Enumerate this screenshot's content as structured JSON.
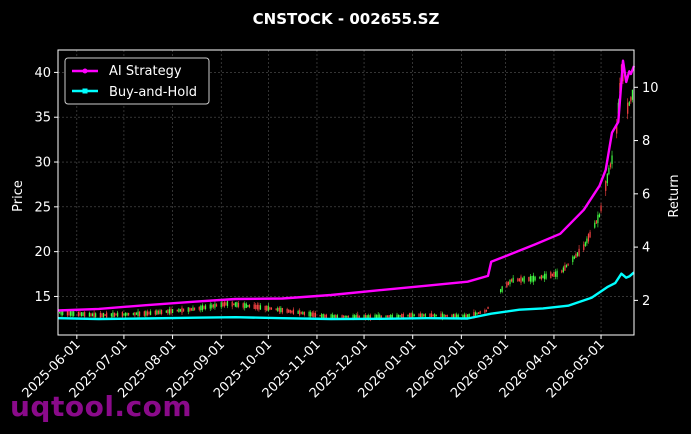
{
  "chart_data": {
    "type": "line",
    "title": "CNSTOCK - 002655.SZ",
    "ylabel_left": "Price",
    "ylabel_right": "Return",
    "x_type": "date",
    "x_range": [
      "2025-05-20",
      "2026-05-22"
    ],
    "x_ticks": [
      "2025-06-01",
      "2025-07-01",
      "2025-08-01",
      "2025-09-01",
      "2025-10-01",
      "2025-11-01",
      "2025-12-01",
      "2026-01-01",
      "2026-02-01",
      "2026-03-01",
      "2026-04-01",
      "2026-05-01"
    ],
    "y_left_ticks": [
      15,
      20,
      25,
      30,
      35,
      40
    ],
    "y_left_range": [
      10.7,
      42.5
    ],
    "y_right_ticks": [
      2,
      4,
      6,
      8,
      10
    ],
    "y_right_range": [
      0.7,
      11.4
    ],
    "grid": true,
    "legend_position": "top-left",
    "series": [
      {
        "name": "AI Strategy",
        "axis": "right",
        "color": "#ff00ff",
        "points": [
          [
            "2025-05-20",
            1.62
          ],
          [
            "2025-06-15",
            1.68
          ],
          [
            "2025-07-15",
            1.82
          ],
          [
            "2025-08-15",
            1.95
          ],
          [
            "2025-09-10",
            2.05
          ],
          [
            "2025-10-10",
            2.07
          ],
          [
            "2025-11-10",
            2.2
          ],
          [
            "2025-12-10",
            2.38
          ],
          [
            "2026-01-10",
            2.55
          ],
          [
            "2026-02-05",
            2.7
          ],
          [
            "2026-02-18",
            2.92
          ],
          [
            "2026-02-20",
            3.45
          ],
          [
            "2026-03-05",
            3.75
          ],
          [
            "2026-03-20",
            4.1
          ],
          [
            "2026-04-05",
            4.5
          ],
          [
            "2026-04-20",
            5.4
          ],
          [
            "2026-04-30",
            6.3
          ],
          [
            "2026-05-04",
            6.9
          ],
          [
            "2026-05-08",
            8.3
          ],
          [
            "2026-05-12",
            8.7
          ],
          [
            "2026-05-15",
            11.0
          ],
          [
            "2026-05-17",
            10.2
          ],
          [
            "2026-05-19",
            10.6
          ],
          [
            "2026-05-20",
            10.5
          ],
          [
            "2026-05-22",
            10.8
          ]
        ]
      },
      {
        "name": "Buy-and-Hold",
        "axis": "right",
        "color": "#00ffff",
        "points": [
          [
            "2025-05-20",
            1.33
          ],
          [
            "2025-06-15",
            1.3
          ],
          [
            "2025-07-15",
            1.32
          ],
          [
            "2025-08-15",
            1.35
          ],
          [
            "2025-09-10",
            1.37
          ],
          [
            "2025-10-10",
            1.33
          ],
          [
            "2025-11-10",
            1.3
          ],
          [
            "2025-12-10",
            1.31
          ],
          [
            "2026-01-10",
            1.33
          ],
          [
            "2026-02-05",
            1.32
          ],
          [
            "2026-02-20",
            1.5
          ],
          [
            "2026-03-10",
            1.65
          ],
          [
            "2026-03-25",
            1.7
          ],
          [
            "2026-04-10",
            1.8
          ],
          [
            "2026-04-25",
            2.1
          ],
          [
            "2026-05-05",
            2.5
          ],
          [
            "2026-05-10",
            2.65
          ],
          [
            "2026-05-14",
            3.0
          ],
          [
            "2026-05-17",
            2.85
          ],
          [
            "2026-05-19",
            2.9
          ],
          [
            "2026-05-22",
            3.05
          ]
        ]
      }
    ],
    "candlesticks": {
      "axis": "left",
      "up_color": "#44ff44",
      "down_color": "#ff4444",
      "price_path": [
        [
          "2025-05-20",
          13.2
        ],
        [
          "2025-06-15",
          12.9
        ],
        [
          "2025-07-15",
          13.1
        ],
        [
          "2025-08-15",
          13.6
        ],
        [
          "2025-09-05",
          14.2
        ],
        [
          "2025-10-05",
          13.6
        ],
        [
          "2025-11-05",
          12.8
        ],
        [
          "2025-12-05",
          12.7
        ],
        [
          "2026-01-05",
          12.9
        ],
        [
          "2026-02-05",
          12.8
        ],
        [
          "2026-02-17",
          13.4
        ],
        [
          "2026-02-22",
          15.0
        ],
        [
          "2026-03-05",
          16.8
        ],
        [
          "2026-03-20",
          17.0
        ],
        [
          "2026-04-05",
          17.6
        ],
        [
          "2026-04-20",
          20.5
        ],
        [
          "2026-04-30",
          24.0
        ],
        [
          "2026-05-06",
          29.0
        ],
        [
          "2026-05-10",
          31.5
        ],
        [
          "2026-05-14",
          40.5
        ],
        [
          "2026-05-18",
          36.0
        ],
        [
          "2026-05-22",
          38.0
        ]
      ],
      "gap": [
        "2026-02-18",
        "2026-02-26"
      ]
    }
  },
  "watermark": "uqtool.com"
}
